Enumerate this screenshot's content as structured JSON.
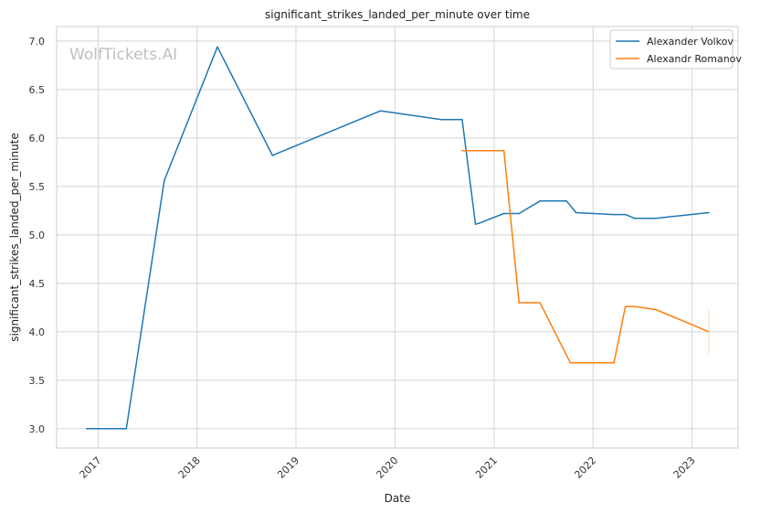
{
  "chart_data": {
    "type": "line",
    "title": "significant_strikes_landed_per_minute over time",
    "xlabel": "Date",
    "ylabel": "significant_strikes_landed_per_minute",
    "watermark": "WolfTickets.AI",
    "xlim": [
      "2016-08-01",
      "2023-06-20"
    ],
    "ylim": [
      2.8,
      7.15
    ],
    "x_ticks": [
      "2017-01-01",
      "2018-01-01",
      "2019-01-01",
      "2020-01-01",
      "2021-01-01",
      "2022-01-01",
      "2023-01-01"
    ],
    "x_tick_labels": [
      "2017",
      "2018",
      "2019",
      "2020",
      "2021",
      "2022",
      "2023"
    ],
    "y_ticks": [
      3.0,
      3.5,
      4.0,
      4.5,
      5.0,
      5.5,
      6.0,
      6.5,
      7.0
    ],
    "y_tick_labels": [
      "3.0",
      "3.5",
      "4.0",
      "4.5",
      "5.0",
      "5.5",
      "6.0",
      "6.5",
      "7.0"
    ],
    "grid": true,
    "legend_position": "top-right",
    "series": [
      {
        "name": "Alexander Volkov",
        "color": "#1f77b4",
        "points": [
          [
            "2016-11-19",
            3.0
          ],
          [
            "2017-04-15",
            3.0
          ],
          [
            "2017-09-02",
            5.56
          ],
          [
            "2018-03-17",
            6.94
          ],
          [
            "2018-10-06",
            5.82
          ],
          [
            "2019-11-09",
            6.28
          ],
          [
            "2020-06-20",
            6.19
          ],
          [
            "2020-09-05",
            6.19
          ],
          [
            "2020-10-24",
            5.11
          ],
          [
            "2020-11-07",
            5.12
          ],
          [
            "2021-02-06",
            5.22
          ],
          [
            "2021-04-03",
            5.22
          ],
          [
            "2021-06-19",
            5.35
          ],
          [
            "2021-09-25",
            5.35
          ],
          [
            "2021-10-30",
            5.23
          ],
          [
            "2022-03-19",
            5.21
          ],
          [
            "2022-04-30",
            5.21
          ],
          [
            "2022-06-04",
            5.17
          ],
          [
            "2022-08-20",
            5.17
          ],
          [
            "2023-03-04",
            5.23
          ]
        ]
      },
      {
        "name": "Alexandr Romanov",
        "color": "#ff7f0e",
        "points": [
          [
            "2020-09-05",
            5.87
          ],
          [
            "2021-02-06",
            5.87
          ],
          [
            "2021-04-03",
            4.3
          ],
          [
            "2021-06-19",
            4.3
          ],
          [
            "2021-10-09",
            3.68
          ],
          [
            "2022-03-19",
            3.68
          ],
          [
            "2022-04-30",
            4.26
          ],
          [
            "2022-06-04",
            4.26
          ],
          [
            "2022-08-20",
            4.23
          ],
          [
            "2023-03-04",
            4.0
          ]
        ]
      }
    ]
  }
}
